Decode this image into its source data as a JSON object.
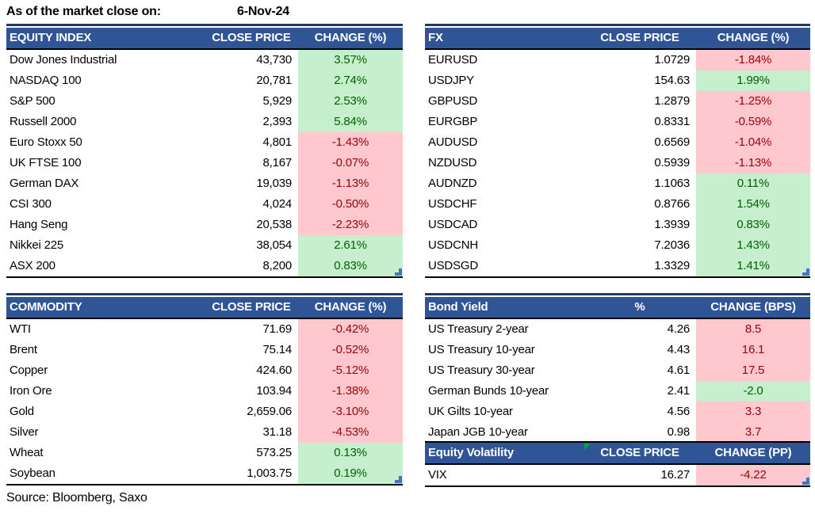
{
  "meta": {
    "as_of_label": "As of the market close on:",
    "as_of_date": "6-Nov-24",
    "source": "Source: Bloomberg, Saxo"
  },
  "colors": {
    "header_bg": "#305596",
    "header_text": "#FFFFFF",
    "table_top_border": "#223962",
    "table_bottom_border": "#000000",
    "positive_bg": "#C6EFCE",
    "positive_text": "#006100",
    "negative_bg": "#FFC7CE",
    "negative_text": "#9C0006",
    "resize_handle": "#4472C4",
    "error_indicator": "#00A550"
  },
  "tables": {
    "equity_index": {
      "headers": [
        "EQUITY INDEX",
        "CLOSE PRICE",
        "CHANGE (%)"
      ],
      "rows": [
        {
          "name": "Dow Jones Industrial",
          "close": "43,730",
          "change": "3.57%",
          "color": "green"
        },
        {
          "name": "NASDAQ 100",
          "close": "20,781",
          "change": "2.74%",
          "color": "green"
        },
        {
          "name": "S&P 500",
          "close": "5,929",
          "change": "2.53%",
          "color": "green"
        },
        {
          "name": "Russell 2000",
          "close": "2,393",
          "change": "5.84%",
          "color": "green"
        },
        {
          "name": "Euro Stoxx 50",
          "close": "4,801",
          "change": "-1.43%",
          "color": "red"
        },
        {
          "name": "UK FTSE 100",
          "close": "8,167",
          "change": "-0.07%",
          "color": "red"
        },
        {
          "name": "German DAX",
          "close": "19,039",
          "change": "-1.13%",
          "color": "red"
        },
        {
          "name": "CSI 300",
          "close": "4,024",
          "change": "-0.50%",
          "color": "red"
        },
        {
          "name": "Hang Seng",
          "close": "20,538",
          "change": "-2.23%",
          "color": "red"
        },
        {
          "name": "Nikkei 225",
          "close": "38,054",
          "change": "2.61%",
          "color": "green"
        },
        {
          "name": "ASX 200",
          "close": "8,200",
          "change": "0.83%",
          "color": "green"
        }
      ]
    },
    "fx": {
      "headers": [
        "FX",
        "CLOSE PRICE",
        "CHANGE (%)"
      ],
      "rows": [
        {
          "name": "EURUSD",
          "close": "1.0729",
          "change": "-1.84%",
          "color": "red"
        },
        {
          "name": "USDJPY",
          "close": "154.63",
          "change": "1.99%",
          "color": "green"
        },
        {
          "name": "GBPUSD",
          "close": "1.2879",
          "change": "-1.25%",
          "color": "red"
        },
        {
          "name": "EURGBP",
          "close": "0.8331",
          "change": "-0.59%",
          "color": "red"
        },
        {
          "name": "AUDUSD",
          "close": "0.6569",
          "change": "-1.04%",
          "color": "red"
        },
        {
          "name": "NZDUSD",
          "close": "0.5939",
          "change": "-1.13%",
          "color": "red"
        },
        {
          "name": "AUDNZD",
          "close": "1.1063",
          "change": "0.11%",
          "color": "green"
        },
        {
          "name": "USDCHF",
          "close": "0.8766",
          "change": "1.54%",
          "color": "green"
        },
        {
          "name": "USDCAD",
          "close": "1.3939",
          "change": "0.83%",
          "color": "green"
        },
        {
          "name": "USDCNH",
          "close": "7.2036",
          "change": "1.43%",
          "color": "green"
        },
        {
          "name": "USDSGD",
          "close": "1.3329",
          "change": "1.41%",
          "color": "green"
        }
      ]
    },
    "commodity": {
      "headers": [
        "COMMODITY",
        "CLOSE PRICE",
        "CHANGE (%)"
      ],
      "rows": [
        {
          "name": "WTI",
          "close": "71.69",
          "change": "-0.42%",
          "color": "red"
        },
        {
          "name": "Brent",
          "close": "75.14",
          "change": "-0.52%",
          "color": "red"
        },
        {
          "name": "Copper",
          "close": "424.60",
          "change": "-5.12%",
          "color": "red"
        },
        {
          "name": "Iron Ore",
          "close": "103.94",
          "change": "-1.38%",
          "color": "red"
        },
        {
          "name": "Gold",
          "close": "2,659.06",
          "change": "-3.10%",
          "color": "red"
        },
        {
          "name": "Silver",
          "close": "31.18",
          "change": "-4.53%",
          "color": "red"
        },
        {
          "name": "Wheat",
          "close": "573.25",
          "change": "0.13%",
          "color": "green"
        },
        {
          "name": "Soybean",
          "close": "1,003.75",
          "change": "0.19%",
          "color": "green"
        }
      ]
    },
    "bond_yield": {
      "headers": [
        "Bond Yield",
        "%",
        "CHANGE (BPS)"
      ],
      "rows": [
        {
          "name": "US Treasury 2-year",
          "close": "4.26",
          "change": "8.5",
          "color": "red"
        },
        {
          "name": "US Treasury 10-year",
          "close": "4.43",
          "change": "16.1",
          "color": "red"
        },
        {
          "name": "US Treasury 30-year",
          "close": "4.61",
          "change": "17.5",
          "color": "red"
        },
        {
          "name": "German Bunds 10-year",
          "close": "2.41",
          "change": "-2.0",
          "color": "green"
        },
        {
          "name": "UK Gilts 10-year",
          "close": "4.56",
          "change": "3.3",
          "color": "red"
        },
        {
          "name": "Japan JGB 10-year",
          "close": "0.98",
          "change": "3.7",
          "color": "red"
        }
      ]
    },
    "equity_volatility": {
      "headers": [
        "Equity Volatility",
        "CLOSE PRICE",
        "CHANGE (PP)"
      ],
      "rows": [
        {
          "name": "VIX",
          "close": "16.27",
          "change": "-4.22",
          "color": "red"
        }
      ]
    }
  }
}
